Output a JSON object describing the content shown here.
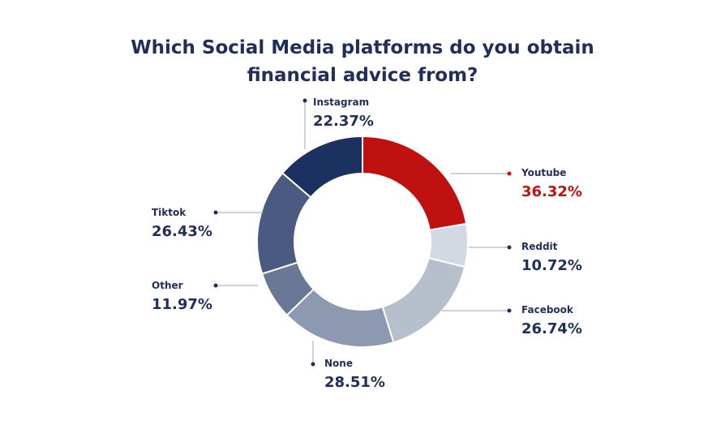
{
  "title": {
    "line1": "Which Social Media platforms do you obtain",
    "line2": "financial advice from?"
  },
  "chart_data": {
    "type": "pie",
    "donut": true,
    "title": "Which Social Media platforms do you obtain financial advice from?",
    "slices": [
      {
        "label": "Youtube",
        "value_text": "36.32%",
        "value": 36.32,
        "color": "#c01111"
      },
      {
        "label": "Reddit",
        "value_text": "10.72%",
        "value": 10.72,
        "color": "#d3d9e2"
      },
      {
        "label": "Facebook",
        "value_text": "26.74%",
        "value": 26.74,
        "color": "#b7bfcd"
      },
      {
        "label": "None",
        "value_text": "28.51%",
        "value": 28.51,
        "color": "#8d99b0"
      },
      {
        "label": "Other",
        "value_text": "11.97%",
        "value": 11.97,
        "color": "#6b7895"
      },
      {
        "label": "Tiktok",
        "value_text": "26.43%",
        "value": 26.43,
        "color": "#4a5a80"
      },
      {
        "label": "Instagram",
        "value_text": "22.37%",
        "value": 22.37,
        "color": "#1b3160"
      }
    ]
  }
}
